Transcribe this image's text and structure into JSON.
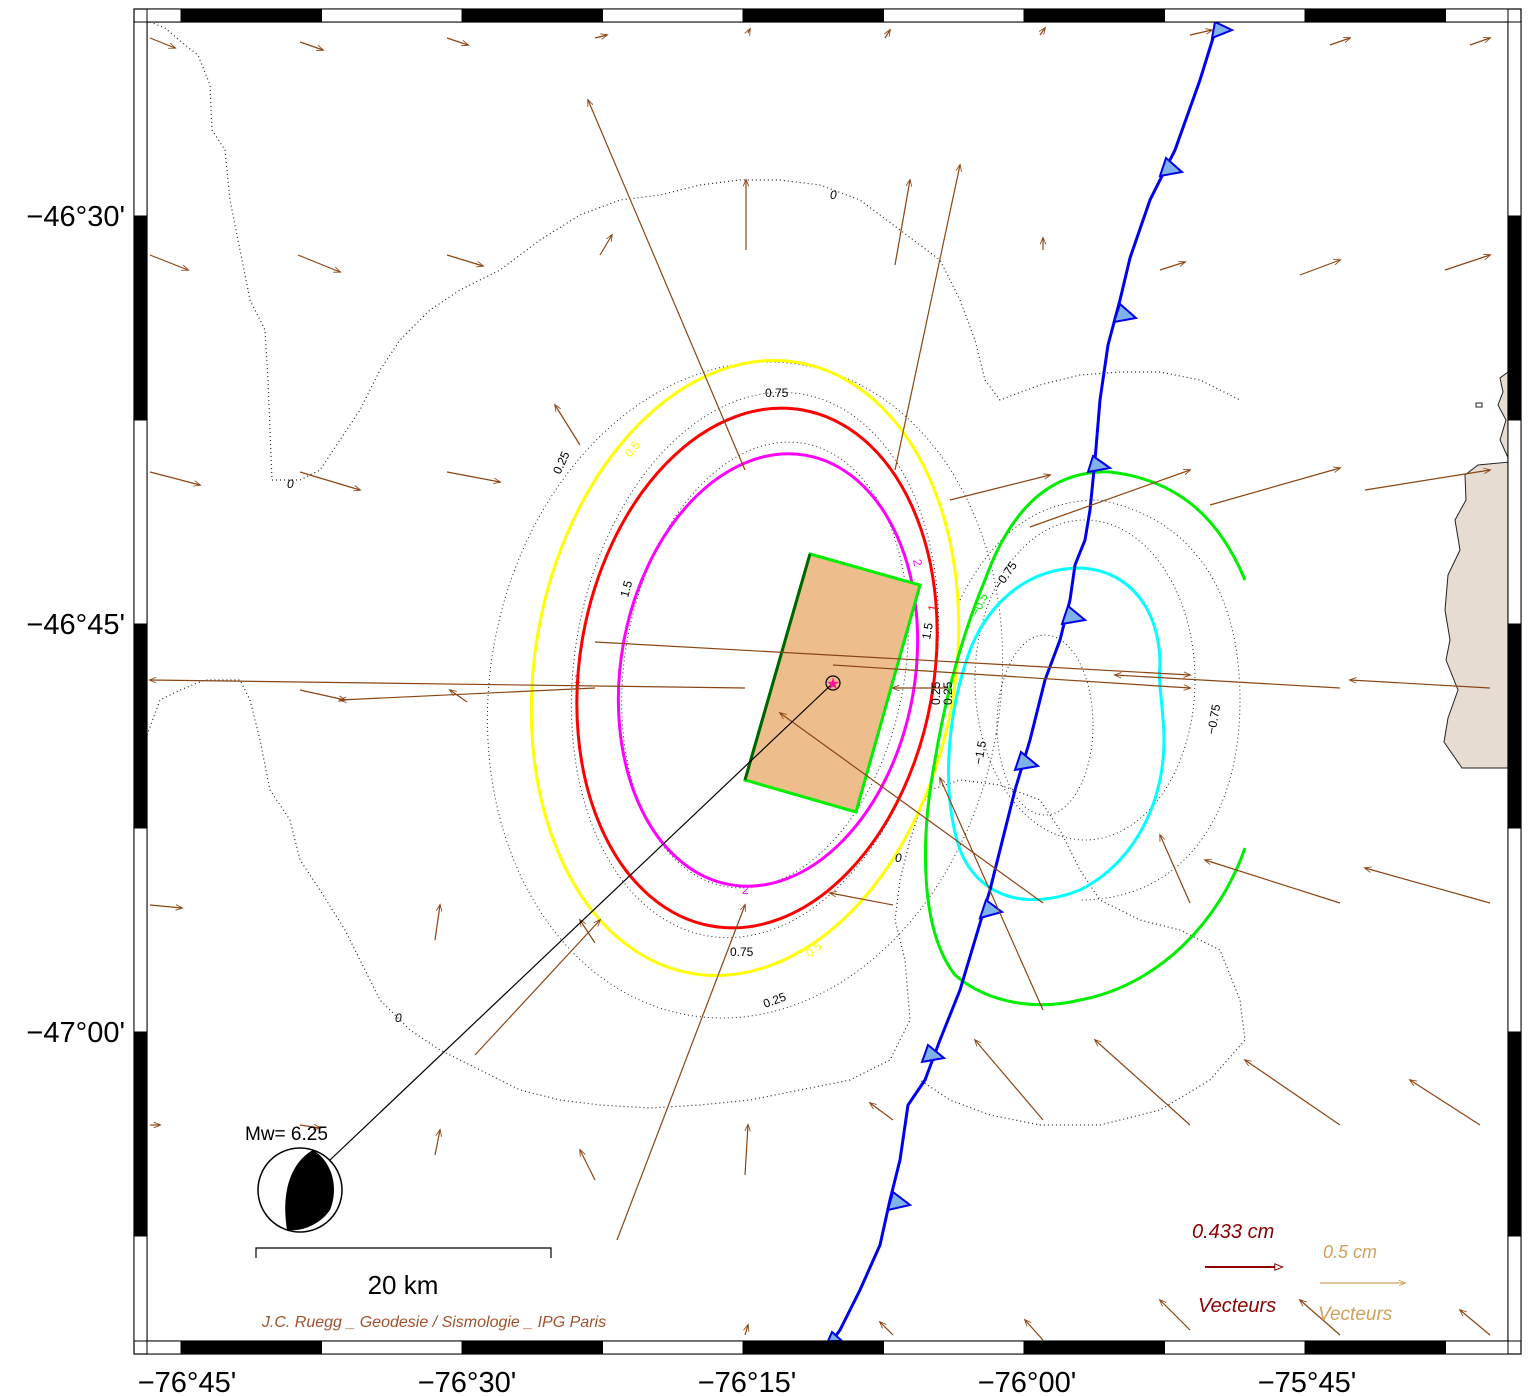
{
  "axes": {
    "x_ticks": [
      {
        "value": -76.75,
        "label": "−76°45'"
      },
      {
        "value": -76.5,
        "label": "−76°30'"
      },
      {
        "value": -76.25,
        "label": "−76°15'"
      },
      {
        "value": -76.0,
        "label": "−76°00'"
      },
      {
        "value": -75.75,
        "label": "−75°45'"
      }
    ],
    "y_ticks": [
      {
        "value": -46.5,
        "label": "−46°30'"
      },
      {
        "value": -46.75,
        "label": "−46°45'"
      },
      {
        "value": -47.0,
        "label": "−47°00'"
      }
    ]
  },
  "contour_labels": {
    "c_0_top": "0",
    "c_0_left": "0",
    "c_0_bl": "0",
    "c_0_mid": "0",
    "c_075_top": "0.75",
    "c_075_bot": "0.75",
    "c_025_l": "0.25",
    "c_025_b": "0.25",
    "c_025_m1": "0.25",
    "c_025_m2": "0.25",
    "c_05_top": "0.5",
    "c_05_bot": "0.5",
    "c_1_l": "1",
    "c_1_r": "1",
    "c_15_l": "1.5",
    "c_15_r": "1.5",
    "c_2_t": "2",
    "c_2_b": "2",
    "c_n05": "−0.5",
    "c_n075_a": "−0.75",
    "c_n075_b": "−0.75",
    "c_n15": "−1.5"
  },
  "magnitude": "Mw= 6.25",
  "scale_bar": "20 km",
  "credit": "J.C. Ruegg _ Geodesie / Sismologie _ IPG Paris",
  "legend": {
    "red_value": "0.433  cm",
    "red_label": "Vecteurs",
    "tan_value": "0.5  cm",
    "tan_label": "Vecteurs"
  },
  "colors": {
    "contour_2": "#ff00ff",
    "contour_1": "#ff0000",
    "contour_05": "#ffff00",
    "contour_neg05": "#00ee00",
    "contour_neg1": "#00ffff",
    "fault_trace": "#0000ee",
    "fault_plane": "#eebd8c",
    "vectors": "#8b4513",
    "legend_red": "#8b0000",
    "legend_tan": "#d2a05a",
    "land": "#e6dcd2",
    "credit": "#a0522d"
  }
}
